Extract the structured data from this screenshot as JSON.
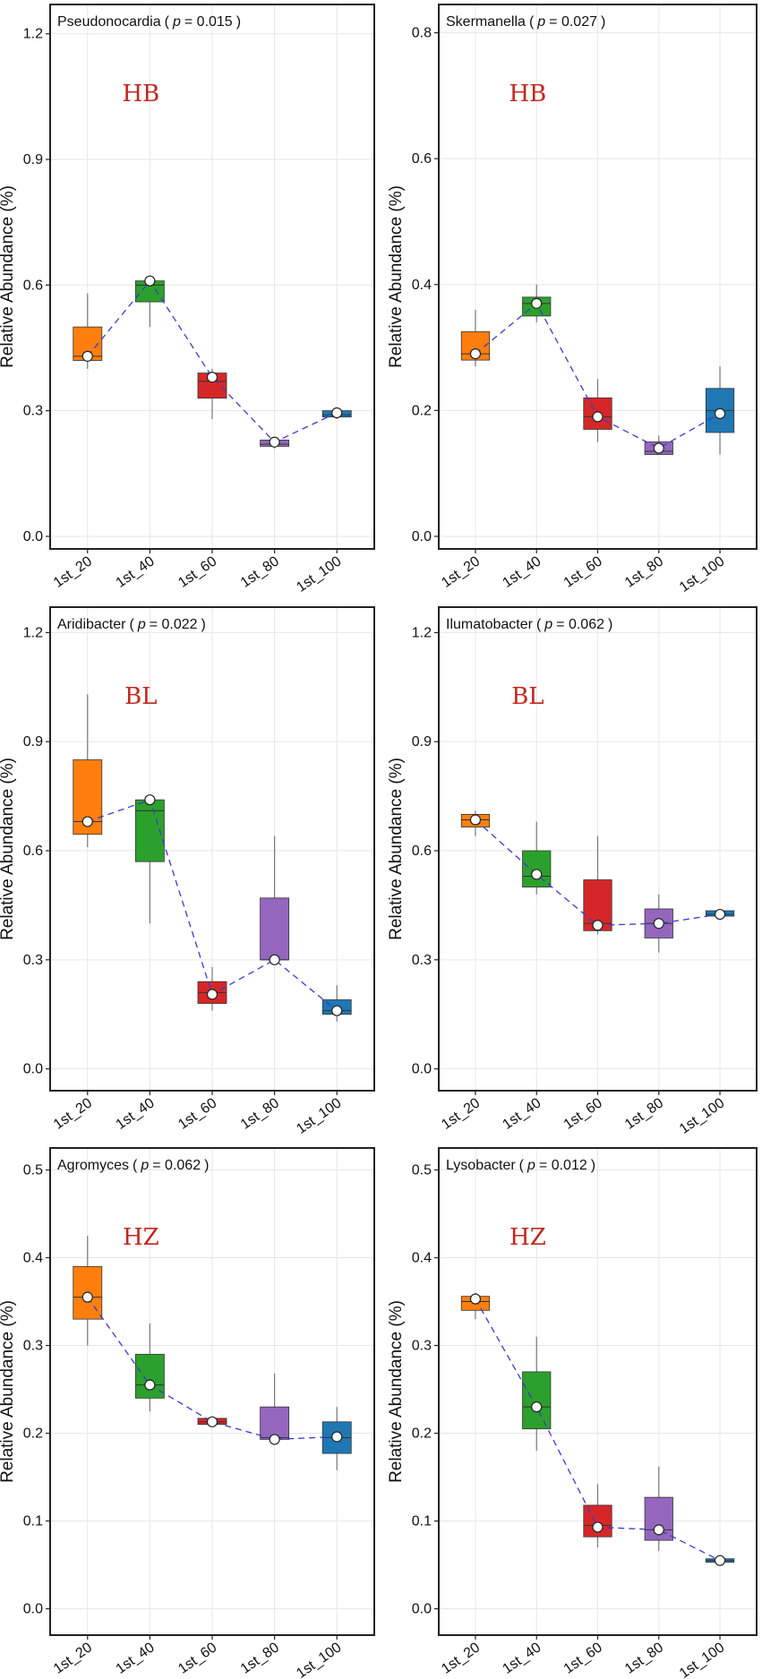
{
  "figure": {
    "ylabel": "Relative Abundance (%)",
    "categories": [
      "1st_20",
      "1st_40",
      "1st_60",
      "1st_80",
      "1st_100"
    ],
    "colors": {
      "box_fills": [
        "#ff7f0e",
        "#2ca02c",
        "#d62728",
        "#9467bd",
        "#1f77b4"
      ],
      "group_label": "#c0281e",
      "connector": "#3a3ad0",
      "grid": "#e6e6e6",
      "frame": "#222222"
    }
  },
  "chart_data": [
    {
      "type": "box",
      "title": "Pseudonocardia",
      "p_label": "p",
      "p_value": "= 0.015",
      "group_label": "HB",
      "yticks": [
        "0.0",
        "0.3",
        "0.6",
        "0.9",
        "1.2"
      ],
      "ylim": [
        -0.03,
        1.27
      ],
      "boxes": [
        {
          "min": 0.4,
          "q1": 0.42,
          "median": 0.43,
          "q3": 0.5,
          "max": 0.58,
          "mean": 0.43
        },
        {
          "min": 0.5,
          "q1": 0.56,
          "median": 0.6,
          "q3": 0.61,
          "max": 0.62,
          "mean": 0.61
        },
        {
          "min": 0.28,
          "q1": 0.33,
          "median": 0.37,
          "q3": 0.39,
          "max": 0.4,
          "mean": 0.38
        },
        {
          "min": 0.21,
          "q1": 0.215,
          "median": 0.22,
          "q3": 0.23,
          "max": 0.235,
          "mean": 0.225
        },
        {
          "min": 0.28,
          "q1": 0.285,
          "median": 0.29,
          "q3": 0.3,
          "max": 0.305,
          "mean": 0.295
        }
      ]
    },
    {
      "type": "box",
      "title": "Skermanella",
      "p_label": "p",
      "p_value": "= 0.027",
      "group_label": "HB",
      "yticks": [
        "0.0",
        "0.2",
        "0.4",
        "0.6",
        "0.8"
      ],
      "ylim": [
        -0.02,
        0.845
      ],
      "boxes": [
        {
          "min": 0.27,
          "q1": 0.28,
          "median": 0.29,
          "q3": 0.325,
          "max": 0.36,
          "mean": 0.29
        },
        {
          "min": 0.34,
          "q1": 0.35,
          "median": 0.37,
          "q3": 0.38,
          "max": 0.4,
          "mean": 0.37
        },
        {
          "min": 0.15,
          "q1": 0.17,
          "median": 0.19,
          "q3": 0.22,
          "max": 0.25,
          "mean": 0.19
        },
        {
          "min": 0.13,
          "q1": 0.13,
          "median": 0.135,
          "q3": 0.15,
          "max": 0.16,
          "mean": 0.14
        },
        {
          "min": 0.13,
          "q1": 0.165,
          "median": 0.2,
          "q3": 0.235,
          "max": 0.27,
          "mean": 0.195
        }
      ]
    },
    {
      "type": "box",
      "title": "Aridibacter",
      "p_label": "p",
      "p_value": "= 0.022",
      "group_label": "BL",
      "yticks": [
        "0.0",
        "0.3",
        "0.6",
        "0.9",
        "1.2"
      ],
      "ylim": [
        -0.06,
        1.27
      ],
      "boxes": [
        {
          "min": 0.61,
          "q1": 0.645,
          "median": 0.68,
          "q3": 0.85,
          "max": 1.03,
          "mean": 0.68
        },
        {
          "min": 0.4,
          "q1": 0.57,
          "median": 0.71,
          "q3": 0.74,
          "max": 0.75,
          "mean": 0.74
        },
        {
          "min": 0.16,
          "q1": 0.18,
          "median": 0.21,
          "q3": 0.24,
          "max": 0.28,
          "mean": 0.205
        },
        {
          "min": 0.3,
          "q1": 0.3,
          "median": 0.3,
          "q3": 0.47,
          "max": 0.64,
          "mean": 0.3
        },
        {
          "min": 0.13,
          "q1": 0.15,
          "median": 0.16,
          "q3": 0.19,
          "max": 0.23,
          "mean": 0.16
        }
      ]
    },
    {
      "type": "box",
      "title": "Ilumatobacter",
      "p_label": "p",
      "p_value": "= 0.062",
      "group_label": "BL",
      "yticks": [
        "0.0",
        "0.3",
        "0.6",
        "0.9",
        "1.2"
      ],
      "ylim": [
        -0.06,
        1.27
      ],
      "boxes": [
        {
          "min": 0.64,
          "q1": 0.665,
          "median": 0.685,
          "q3": 0.7,
          "max": 0.71,
          "mean": 0.685
        },
        {
          "min": 0.48,
          "q1": 0.5,
          "median": 0.53,
          "q3": 0.6,
          "max": 0.68,
          "mean": 0.535
        },
        {
          "min": 0.37,
          "q1": 0.38,
          "median": 0.4,
          "q3": 0.52,
          "max": 0.64,
          "mean": 0.395
        },
        {
          "min": 0.32,
          "q1": 0.36,
          "median": 0.4,
          "q3": 0.44,
          "max": 0.48,
          "mean": 0.4
        },
        {
          "min": 0.415,
          "q1": 0.42,
          "median": 0.425,
          "q3": 0.435,
          "max": 0.44,
          "mean": 0.425
        }
      ]
    },
    {
      "type": "box",
      "title": "Agromyces",
      "p_label": "p",
      "p_value": "= 0.062",
      "group_label": "HZ",
      "yticks": [
        "0.0",
        "0.1",
        "0.2",
        "0.3",
        "0.4",
        "0.5"
      ],
      "ylim": [
        -0.03,
        0.525
      ],
      "boxes": [
        {
          "min": 0.3,
          "q1": 0.33,
          "median": 0.355,
          "q3": 0.39,
          "max": 0.425,
          "mean": 0.355
        },
        {
          "min": 0.225,
          "q1": 0.24,
          "median": 0.255,
          "q3": 0.29,
          "max": 0.325,
          "mean": 0.255
        },
        {
          "min": 0.21,
          "q1": 0.21,
          "median": 0.213,
          "q3": 0.217,
          "max": 0.217,
          "mean": 0.213
        },
        {
          "min": 0.19,
          "q1": 0.193,
          "median": 0.195,
          "q3": 0.23,
          "max": 0.268,
          "mean": 0.193
        },
        {
          "min": 0.158,
          "q1": 0.177,
          "median": 0.195,
          "q3": 0.213,
          "max": 0.23,
          "mean": 0.196
        }
      ]
    },
    {
      "type": "box",
      "title": "Lysobacter",
      "p_label": "p",
      "p_value": "= 0.012",
      "group_label": "HZ",
      "yticks": [
        "0.0",
        "0.1",
        "0.2",
        "0.3",
        "0.4",
        "0.5"
      ],
      "ylim": [
        -0.03,
        0.525
      ],
      "boxes": [
        {
          "min": 0.33,
          "q1": 0.34,
          "median": 0.35,
          "q3": 0.356,
          "max": 0.36,
          "mean": 0.353
        },
        {
          "min": 0.18,
          "q1": 0.205,
          "median": 0.23,
          "q3": 0.27,
          "max": 0.31,
          "mean": 0.23
        },
        {
          "min": 0.07,
          "q1": 0.082,
          "median": 0.095,
          "q3": 0.118,
          "max": 0.142,
          "mean": 0.093
        },
        {
          "min": 0.066,
          "q1": 0.078,
          "median": 0.09,
          "q3": 0.127,
          "max": 0.162,
          "mean": 0.09
        },
        {
          "min": 0.052,
          "q1": 0.053,
          "median": 0.055,
          "q3": 0.057,
          "max": 0.058,
          "mean": 0.055
        }
      ]
    }
  ]
}
